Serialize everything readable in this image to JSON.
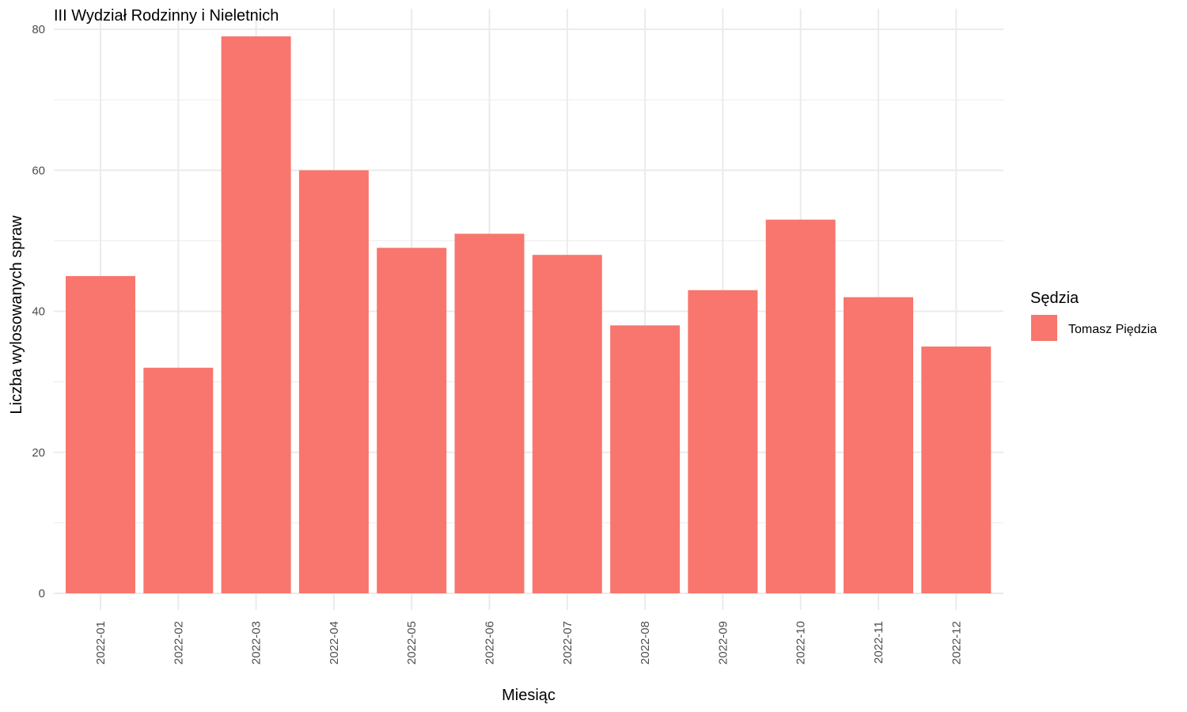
{
  "chart_data": {
    "type": "bar",
    "title": "III Wydział Rodzinny i Nieletnich",
    "xlabel": "Miesiąc",
    "ylabel": "Liczba wylosowanych spraw",
    "categories": [
      "2022-01",
      "2022-02",
      "2022-03",
      "2022-04",
      "2022-05",
      "2022-06",
      "2022-07",
      "2022-08",
      "2022-09",
      "2022-10",
      "2022-11",
      "2022-12"
    ],
    "series": [
      {
        "name": "Tomasz Piędzia",
        "color": "#f8766d",
        "values": [
          45,
          32,
          79,
          60,
          49,
          51,
          48,
          38,
          43,
          53,
          42,
          35
        ]
      }
    ],
    "ylim": [
      0,
      80
    ],
    "yticks": [
      0,
      20,
      40,
      60,
      80
    ],
    "grid": true,
    "legend": {
      "title": "Sędzia",
      "placement": "right"
    }
  }
}
